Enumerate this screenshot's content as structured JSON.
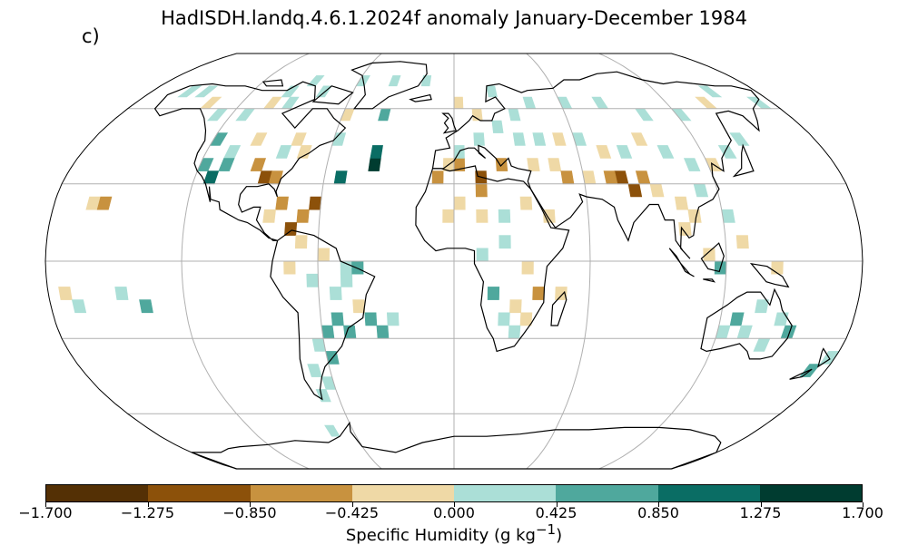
{
  "title": "HadISDH.landq.4.6.1.2024f anomaly January-December 1984",
  "panel_label": "c)",
  "colorbar": {
    "label_text": "Specific Humidity (g kg",
    "label_sup": "−1",
    "label_close": ")",
    "ticks": [
      "−1.700",
      "−1.275",
      "−0.850",
      "−0.425",
      "0.000",
      "0.425",
      "0.850",
      "1.275",
      "1.700"
    ],
    "colors": [
      "#543005",
      "#8c510a",
      "#c8923f",
      "#efd9a6",
      "#abdfd7",
      "#4fa89d",
      "#0a6d64",
      "#003c30"
    ]
  },
  "map": {
    "projection": "robinson",
    "gridlines": true,
    "cell_size_deg": 5,
    "cells": [
      [
        -35,
        -30,
        5
      ],
      [
        -75,
        -70,
        4
      ],
      [
        -30,
        -25,
        4
      ],
      [
        10,
        25,
        2
      ],
      [
        10,
        30,
        1
      ],
      [
        -55,
        30,
        6
      ],
      [
        -40,
        35,
        7
      ],
      [
        -40,
        40,
        6
      ],
      [
        -60,
        45,
        4
      ],
      [
        -60,
        55,
        3
      ],
      [
        -40,
        55,
        5
      ],
      [
        -70,
        15,
        2
      ],
      [
        -65,
        20,
        1
      ],
      [
        -80,
        20,
        2
      ],
      [
        -75,
        10,
        1
      ],
      [
        -85,
        15,
        3
      ],
      [
        -70,
        5,
        3
      ],
      [
        -60,
        0,
        3
      ],
      [
        -50,
        -5,
        4
      ],
      [
        -45,
        -20,
        3
      ],
      [
        -55,
        -25,
        5
      ],
      [
        -40,
        -25,
        5
      ],
      [
        75,
        30,
        1
      ],
      [
        80,
        25,
        1
      ],
      [
        85,
        30,
        2
      ],
      [
        70,
        30,
        2
      ],
      [
        90,
        25,
        3
      ],
      [
        100,
        20,
        3
      ],
      [
        110,
        25,
        4
      ],
      [
        -100,
        45,
        3
      ],
      [
        -110,
        40,
        4
      ],
      [
        -95,
        35,
        2
      ],
      [
        -90,
        30,
        1
      ],
      [
        -85,
        30,
        2
      ],
      [
        -120,
        35,
        5
      ],
      [
        -115,
        30,
        6
      ],
      [
        -110,
        35,
        5
      ],
      [
        -120,
        45,
        5
      ],
      [
        -10,
        30,
        2
      ],
      [
        -5,
        35,
        3
      ],
      [
        0,
        35,
        2
      ],
      [
        20,
        35,
        2
      ],
      [
        35,
        35,
        3
      ],
      [
        45,
        35,
        3
      ],
      [
        50,
        30,
        2
      ],
      [
        60,
        30,
        3
      ],
      [
        -115,
        55,
        4
      ],
      [
        -105,
        60,
        3
      ],
      [
        -95,
        60,
        4
      ],
      [
        -80,
        45,
        3
      ],
      [
        -75,
        40,
        3
      ],
      [
        -85,
        40,
        4
      ],
      [
        -130,
        55,
        4
      ],
      [
        -140,
        60,
        3
      ],
      [
        -150,
        65,
        4
      ],
      [
        -160,
        65,
        4
      ],
      [
        -100,
        65,
        4
      ],
      [
        -90,
        70,
        4
      ],
      [
        -80,
        65,
        4
      ],
      [
        -60,
        70,
        4
      ],
      [
        -40,
        70,
        4
      ],
      [
        -20,
        70,
        4
      ],
      [
        0,
        60,
        3
      ],
      [
        10,
        55,
        3
      ],
      [
        20,
        50,
        4
      ],
      [
        30,
        45,
        4
      ],
      [
        40,
        45,
        4
      ],
      [
        50,
        45,
        3
      ],
      [
        60,
        45,
        4
      ],
      [
        70,
        40,
        3
      ],
      [
        80,
        40,
        4
      ],
      [
        90,
        45,
        3
      ],
      [
        100,
        40,
        4
      ],
      [
        110,
        35,
        4
      ],
      [
        120,
        35,
        3
      ],
      [
        130,
        40,
        4
      ],
      [
        140,
        45,
        4
      ],
      [
        100,
        55,
        4
      ],
      [
        80,
        60,
        4
      ],
      [
        60,
        60,
        4
      ],
      [
        40,
        60,
        4
      ],
      [
        20,
        65,
        4
      ],
      [
        0,
        40,
        4
      ],
      [
        10,
        45,
        4
      ],
      [
        30,
        55,
        4
      ],
      [
        120,
        55,
        4
      ],
      [
        140,
        60,
        3
      ],
      [
        150,
        65,
        4
      ],
      [
        170,
        60,
        4
      ],
      [
        0,
        20,
        3
      ],
      [
        -5,
        15,
        3
      ],
      [
        10,
        15,
        3
      ],
      [
        20,
        15,
        4
      ],
      [
        30,
        20,
        3
      ],
      [
        40,
        15,
        3
      ],
      [
        20,
        5,
        4
      ],
      [
        10,
        0,
        4
      ],
      [
        30,
        -5,
        3
      ],
      [
        25,
        -20,
        3
      ],
      [
        20,
        -25,
        4
      ],
      [
        15,
        -15,
        5
      ],
      [
        30,
        -25,
        3
      ],
      [
        25,
        -30,
        4
      ],
      [
        35,
        -15,
        2
      ],
      [
        45,
        -15,
        3
      ],
      [
        135,
        -20,
        4
      ],
      [
        125,
        -25,
        5
      ],
      [
        145,
        -25,
        4
      ],
      [
        150,
        -30,
        5
      ],
      [
        140,
        -35,
        4
      ],
      [
        130,
        -30,
        4
      ],
      [
        120,
        -30,
        4
      ],
      [
        175,
        -40,
        4
      ],
      [
        170,
        -45,
        5
      ],
      [
        100,
        10,
        3
      ],
      [
        105,
        15,
        3
      ],
      [
        120,
        15,
        4
      ],
      [
        125,
        5,
        3
      ],
      [
        110,
        0,
        3
      ],
      [
        115,
        -5,
        5
      ],
      [
        140,
        -5,
        3
      ],
      [
        -165,
        20,
        3
      ],
      [
        -160,
        20,
        2
      ],
      [
        -175,
        -15,
        3
      ],
      [
        -170,
        -20,
        4
      ],
      [
        -60,
        -40,
        5
      ],
      [
        -65,
        -50,
        4
      ],
      [
        -70,
        -45,
        4
      ],
      [
        -70,
        -55,
        4
      ],
      [
        -65,
        -35,
        4
      ],
      [
        -60,
        -30,
        5
      ],
      [
        -50,
        -30,
        5
      ],
      [
        -55,
        -15,
        4
      ],
      [
        -50,
        -10,
        4
      ],
      [
        -45,
        -5,
        5
      ],
      [
        -65,
        -10,
        4
      ],
      [
        -75,
        -5,
        3
      ],
      [
        -150,
        -15,
        4
      ],
      [
        -140,
        -20,
        5
      ]
    ]
  }
}
